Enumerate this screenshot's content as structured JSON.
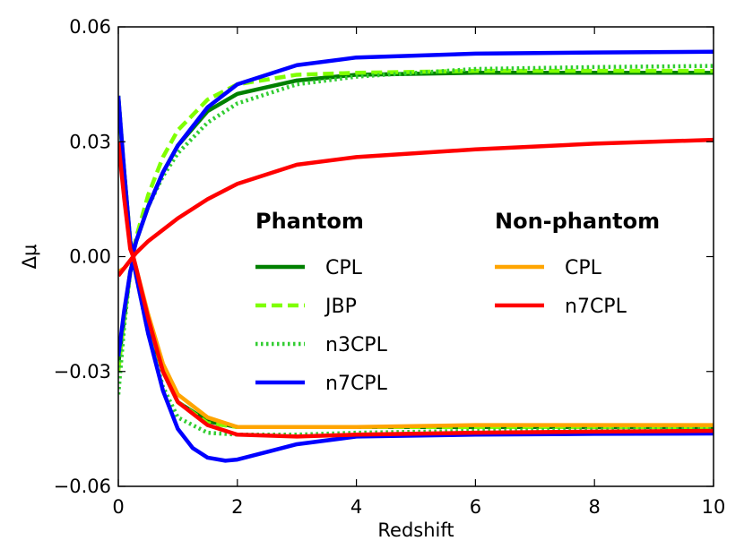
{
  "chart_data": {
    "type": "line",
    "xlabel": "Redshift",
    "ylabel": "Δμ",
    "xlim": [
      0,
      10
    ],
    "ylim": [
      -0.06,
      0.06
    ],
    "x_ticks": [
      0,
      2,
      4,
      6,
      8,
      10
    ],
    "x_tick_labels": [
      "0",
      "2",
      "4",
      "6",
      "8",
      "10"
    ],
    "y_ticks": [
      -0.06,
      -0.03,
      0.0,
      0.03,
      0.06
    ],
    "y_tick_labels": [
      "−0.06",
      "−0.03",
      "0.00",
      "0.03",
      "0.06"
    ],
    "legend": {
      "placement": "center-right",
      "groups": [
        {
          "title": "Phantom",
          "entries": [
            {
              "label": "CPL",
              "color": "#008000",
              "style": "solid"
            },
            {
              "label": "JBP",
              "color": "#7fff00",
              "style": "dashed"
            },
            {
              "label": "n3CPL",
              "color": "#32cd32",
              "style": "dotted"
            },
            {
              "label": "n7CPL",
              "color": "#0000ff",
              "style": "solid"
            }
          ]
        },
        {
          "title": "Non-phantom",
          "entries": [
            {
              "label": "CPL",
              "color": "#ffa500",
              "style": "solid"
            },
            {
              "label": "n7CPL",
              "color": "#ff0000",
              "style": "solid"
            }
          ]
        }
      ]
    },
    "series": [
      {
        "name": "Phantom CPL (upper)",
        "color": "#008000",
        "style": "solid",
        "points": [
          [
            0,
            0.04
          ],
          [
            0.1,
            0.022
          ],
          [
            0.2,
            0.004
          ],
          [
            0.25,
            0.001
          ],
          [
            0.3,
            0.004
          ],
          [
            0.5,
            0.013
          ],
          [
            0.75,
            0.022
          ],
          [
            1,
            0.029
          ],
          [
            1.5,
            0.038
          ],
          [
            2,
            0.0425
          ],
          [
            3,
            0.046
          ],
          [
            4,
            0.0475
          ],
          [
            6,
            0.048
          ],
          [
            8,
            0.048
          ],
          [
            10,
            0.048
          ]
        ]
      },
      {
        "name": "Phantom CPL (lower)",
        "color": "#008000",
        "style": "solid",
        "points": [
          [
            0,
            -0.028
          ],
          [
            0.1,
            -0.016
          ],
          [
            0.2,
            -0.004
          ],
          [
            0.25,
            -0.001
          ],
          [
            0.3,
            -0.004
          ],
          [
            0.5,
            -0.018
          ],
          [
            0.75,
            -0.03
          ],
          [
            1,
            -0.038
          ],
          [
            1.5,
            -0.043
          ],
          [
            2,
            -0.0445
          ],
          [
            3,
            -0.0445
          ],
          [
            4,
            -0.0445
          ],
          [
            6,
            -0.0445
          ],
          [
            8,
            -0.0445
          ],
          [
            10,
            -0.0445
          ]
        ]
      },
      {
        "name": "Phantom JBP (upper)",
        "color": "#7fff00",
        "style": "dashed",
        "points": [
          [
            0,
            0.042
          ],
          [
            0.1,
            0.022
          ],
          [
            0.2,
            0.004
          ],
          [
            0.25,
            0.001
          ],
          [
            0.3,
            0.005
          ],
          [
            0.5,
            0.016
          ],
          [
            0.75,
            0.026
          ],
          [
            1,
            0.033
          ],
          [
            1.5,
            0.041
          ],
          [
            2,
            0.045
          ],
          [
            3,
            0.0475
          ],
          [
            4,
            0.048
          ],
          [
            6,
            0.0485
          ],
          [
            8,
            0.0485
          ],
          [
            10,
            0.0485
          ]
        ]
      },
      {
        "name": "Phantom JBP (lower)",
        "color": "#7fff00",
        "style": "dashed",
        "points": [
          [
            0,
            -0.03
          ],
          [
            0.1,
            -0.016
          ],
          [
            0.2,
            -0.004
          ],
          [
            0.25,
            -0.001
          ],
          [
            0.3,
            -0.004
          ],
          [
            0.5,
            -0.018
          ],
          [
            0.75,
            -0.03
          ],
          [
            1,
            -0.038
          ],
          [
            1.5,
            -0.0435
          ],
          [
            2,
            -0.0445
          ],
          [
            3,
            -0.0445
          ],
          [
            4,
            -0.0445
          ],
          [
            6,
            -0.0445
          ],
          [
            8,
            -0.0445
          ],
          [
            10,
            -0.0445
          ]
        ]
      },
      {
        "name": "Phantom n3CPL (upper)",
        "color": "#32cd32",
        "style": "dotted",
        "points": [
          [
            0,
            0.042
          ],
          [
            0.1,
            0.022
          ],
          [
            0.2,
            0.004
          ],
          [
            0.25,
            0.001
          ],
          [
            0.3,
            0.004
          ],
          [
            0.5,
            0.013
          ],
          [
            0.75,
            0.021
          ],
          [
            1,
            0.027
          ],
          [
            1.5,
            0.035
          ],
          [
            2,
            0.04
          ],
          [
            3,
            0.045
          ],
          [
            4,
            0.047
          ],
          [
            6,
            0.049
          ],
          [
            8,
            0.0495
          ],
          [
            10,
            0.0498
          ]
        ]
      },
      {
        "name": "Phantom n3CPL (lower)",
        "color": "#32cd32",
        "style": "dotted",
        "points": [
          [
            0,
            -0.036
          ],
          [
            0.1,
            -0.018
          ],
          [
            0.2,
            -0.004
          ],
          [
            0.25,
            -0.001
          ],
          [
            0.3,
            -0.005
          ],
          [
            0.5,
            -0.02
          ],
          [
            0.75,
            -0.034
          ],
          [
            1,
            -0.042
          ],
          [
            1.5,
            -0.046
          ],
          [
            2,
            -0.0465
          ],
          [
            3,
            -0.0465
          ],
          [
            4,
            -0.046
          ],
          [
            6,
            -0.0455
          ],
          [
            8,
            -0.0452
          ],
          [
            10,
            -0.045
          ]
        ]
      },
      {
        "name": "Phantom n7CPL (upper)",
        "color": "#0000ff",
        "style": "solid",
        "points": [
          [
            0,
            0.042
          ],
          [
            0.1,
            0.022
          ],
          [
            0.2,
            0.004
          ],
          [
            0.25,
            0.001
          ],
          [
            0.3,
            0.004
          ],
          [
            0.5,
            0.013
          ],
          [
            0.75,
            0.022
          ],
          [
            1,
            0.029
          ],
          [
            1.5,
            0.039
          ],
          [
            2,
            0.045
          ],
          [
            3,
            0.05
          ],
          [
            4,
            0.052
          ],
          [
            6,
            0.053
          ],
          [
            8,
            0.0533
          ],
          [
            10,
            0.0535
          ]
        ]
      },
      {
        "name": "Phantom n7CPL (lower)",
        "color": "#0000ff",
        "style": "solid",
        "points": [
          [
            0,
            -0.026
          ],
          [
            0.1,
            -0.014
          ],
          [
            0.2,
            -0.004
          ],
          [
            0.25,
            -0.001
          ],
          [
            0.3,
            -0.005
          ],
          [
            0.5,
            -0.02
          ],
          [
            0.75,
            -0.035
          ],
          [
            1,
            -0.045
          ],
          [
            1.25,
            -0.05
          ],
          [
            1.5,
            -0.0525
          ],
          [
            1.8,
            -0.0533
          ],
          [
            2,
            -0.053
          ],
          [
            2.5,
            -0.051
          ],
          [
            3,
            -0.049
          ],
          [
            4,
            -0.047
          ],
          [
            6,
            -0.0465
          ],
          [
            8,
            -0.0463
          ],
          [
            10,
            -0.0462
          ]
        ]
      },
      {
        "name": "Non-phantom CPL",
        "color": "#ffa500",
        "style": "solid",
        "points": [
          [
            0,
            -0.004
          ],
          [
            0.1,
            -0.003
          ],
          [
            0.2,
            -0.001
          ],
          [
            0.25,
            0.0
          ],
          [
            0.3,
            -0.003
          ],
          [
            0.5,
            -0.015
          ],
          [
            0.75,
            -0.028
          ],
          [
            1,
            -0.036
          ],
          [
            1.5,
            -0.042
          ],
          [
            2,
            -0.0445
          ],
          [
            3,
            -0.0445
          ],
          [
            4,
            -0.0445
          ],
          [
            6,
            -0.044
          ],
          [
            8,
            -0.044
          ],
          [
            10,
            -0.044
          ]
        ]
      },
      {
        "name": "Non-phantom n7CPL (upper)",
        "color": "#ff0000",
        "style": "solid",
        "points": [
          [
            0,
            -0.005
          ],
          [
            0.1,
            -0.003
          ],
          [
            0.2,
            -0.001
          ],
          [
            0.25,
            0.0
          ],
          [
            0.3,
            0.001
          ],
          [
            0.5,
            0.004
          ],
          [
            1,
            0.01
          ],
          [
            1.5,
            0.015
          ],
          [
            2,
            0.019
          ],
          [
            3,
            0.024
          ],
          [
            4,
            0.026
          ],
          [
            6,
            0.028
          ],
          [
            8,
            0.0295
          ],
          [
            10,
            0.0305
          ]
        ]
      },
      {
        "name": "Non-phantom n7CPL (lower)",
        "color": "#ff0000",
        "style": "solid",
        "points": [
          [
            0,
            0.03
          ],
          [
            0.1,
            0.015
          ],
          [
            0.2,
            0.002
          ],
          [
            0.25,
            0.0
          ],
          [
            0.3,
            -0.003
          ],
          [
            0.5,
            -0.016
          ],
          [
            0.75,
            -0.03
          ],
          [
            1,
            -0.038
          ],
          [
            1.5,
            -0.044
          ],
          [
            2,
            -0.0465
          ],
          [
            3,
            -0.047
          ],
          [
            4,
            -0.0465
          ],
          [
            6,
            -0.046
          ],
          [
            8,
            -0.0457
          ],
          [
            10,
            -0.0455
          ]
        ]
      }
    ]
  }
}
